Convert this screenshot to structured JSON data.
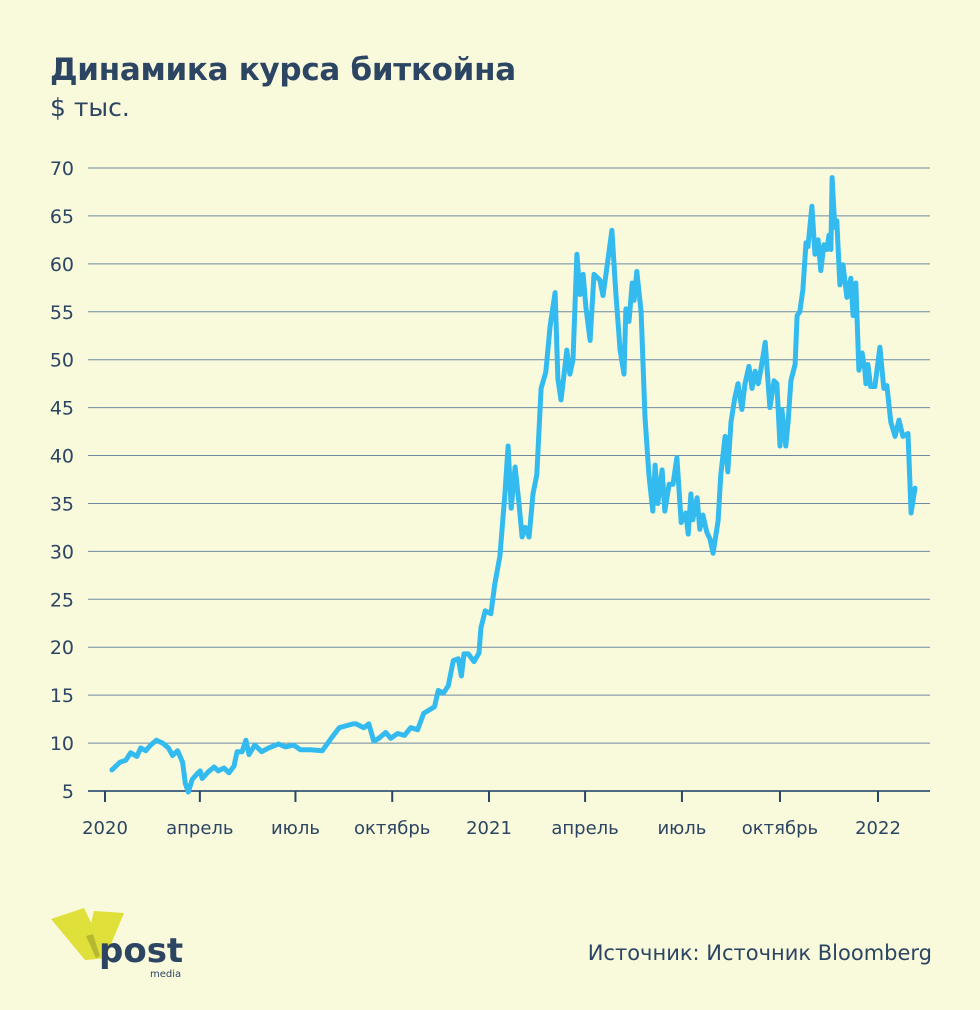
{
  "chart_data": {
    "type": "line",
    "title": "Динамика курса биткойна",
    "subtitle": "$ тыс.",
    "xlabel": "",
    "ylabel": "$ тыс.",
    "ylim": [
      5,
      70
    ],
    "yticks": [
      5,
      10,
      15,
      20,
      25,
      30,
      35,
      40,
      45,
      50,
      55,
      60,
      65,
      70
    ],
    "xticks": [
      {
        "x": 2020.0,
        "label": "2020"
      },
      {
        "x": 2020.247,
        "label": "апрель"
      },
      {
        "x": 2020.496,
        "label": "июль"
      },
      {
        "x": 2020.748,
        "label": "октябрь"
      },
      {
        "x": 2021.0,
        "label": "2021"
      },
      {
        "x": 2021.247,
        "label": "апрель"
      },
      {
        "x": 2021.496,
        "label": "июль"
      },
      {
        "x": 2021.748,
        "label": "октябрь"
      },
      {
        "x": 2022.0,
        "label": "2022"
      }
    ],
    "grid": true,
    "color": "#33bbef",
    "series": [
      {
        "name": "Bitcoin",
        "x": [
          2020.018,
          2020.039,
          2020.054,
          2020.067,
          2020.083,
          2020.093,
          2020.106,
          2020.119,
          2020.134,
          2020.15,
          2020.165,
          2020.176,
          2020.189,
          2020.202,
          2020.209,
          2020.217,
          2020.227,
          2020.24,
          2020.248,
          2020.253,
          2020.269,
          2020.284,
          2020.295,
          2020.31,
          2020.323,
          2020.336,
          2020.344,
          2020.357,
          2020.367,
          2020.375,
          2020.39,
          2020.408,
          2020.426,
          2020.452,
          2020.47,
          2020.491,
          2020.509,
          2020.535,
          2020.566,
          2020.589,
          2020.61,
          2020.646,
          2020.654,
          2020.674,
          2020.687,
          2020.7,
          2020.713,
          2020.731,
          2020.744,
          2020.762,
          2020.78,
          2020.796,
          2020.814,
          2020.83,
          2020.858,
          2020.868,
          2020.881,
          2020.894,
          2020.907,
          2020.92,
          2020.928,
          2020.935,
          2020.946,
          2020.961,
          2020.974,
          2020.979,
          2020.99,
          2021.005,
          2021.015,
          2021.028,
          2021.041,
          2021.049,
          2021.057,
          2021.067,
          2021.077,
          2021.085,
          2021.093,
          2021.103,
          2021.113,
          2021.123,
          2021.134,
          2021.146,
          2021.157,
          2021.17,
          2021.177,
          2021.185,
          2021.193,
          2021.2,
          2021.208,
          2021.216,
          2021.226,
          2021.234,
          2021.242,
          2021.249,
          2021.26,
          2021.27,
          2021.285,
          2021.293,
          2021.301,
          2021.316,
          2021.326,
          2021.337,
          2021.347,
          2021.352,
          2021.36,
          2021.368,
          2021.373,
          2021.38,
          2021.391,
          2021.401,
          2021.411,
          2021.421,
          2021.427,
          2021.434,
          2021.445,
          2021.452,
          2021.463,
          2021.473,
          2021.483,
          2021.494,
          2021.506,
          2021.512,
          2021.519,
          2021.524,
          2021.535,
          2021.542,
          2021.55,
          2021.56,
          2021.568,
          2021.576,
          2021.589,
          2021.596,
          2021.607,
          2021.614,
          2021.622,
          2021.632,
          2021.64,
          2021.65,
          2021.658,
          2021.668,
          2021.676,
          2021.684,
          2021.692,
          2021.699,
          2021.71,
          2021.722,
          2021.733,
          2021.74,
          2021.748,
          2021.753,
          2021.763,
          2021.769,
          2021.776,
          2021.787,
          2021.792,
          2021.799,
          2021.807,
          2021.815,
          2021.82,
          2021.83,
          2021.838,
          2021.846,
          2021.853,
          2021.861,
          2021.869,
          2021.874,
          2021.879,
          2021.882,
          2021.889,
          2021.894,
          2021.902,
          2021.91,
          2021.92,
          2021.93,
          2021.936,
          2021.943,
          2021.951,
          2021.959,
          2021.966,
          2021.969,
          2021.974,
          2021.981,
          2021.992,
          2022.005,
          2022.015,
          2022.023,
          2022.033,
          2022.044,
          2022.054,
          2022.064,
          2022.077,
          2022.085,
          2022.095
        ],
        "values": [
          7.2,
          8,
          8.2,
          9,
          8.6,
          9.5,
          9.2,
          9.8,
          10.3,
          10,
          9.5,
          8.7,
          9.2,
          8,
          5.8,
          4.9,
          6.2,
          6.8,
          7.1,
          6.3,
          7,
          7.5,
          7.1,
          7.4,
          6.9,
          7.6,
          9.1,
          9.1,
          10.3,
          8.8,
          9.8,
          9.1,
          9.5,
          9.9,
          9.6,
          9.8,
          9.3,
          9.3,
          9.2,
          10.5,
          11.6,
          12,
          12,
          11.6,
          12,
          10.2,
          10.5,
          11.1,
          10.5,
          11,
          10.8,
          11.6,
          11.4,
          13.1,
          13.8,
          15.5,
          15.2,
          16,
          18.6,
          18.8,
          17,
          19.3,
          19.3,
          18.5,
          19.4,
          22,
          23.8,
          23.5,
          26.6,
          29.5,
          36,
          41,
          34.5,
          38.8,
          35,
          31.5,
          32.5,
          31.5,
          36,
          38,
          47,
          48.7,
          53.5,
          57,
          48,
          45.8,
          48.5,
          51,
          48.5,
          50,
          61,
          56.8,
          58.9,
          55.5,
          52,
          58.9,
          58.3,
          56.7,
          59,
          63.5,
          57,
          51,
          48.5,
          55.3,
          54,
          58,
          56.2,
          59.2,
          55,
          44,
          38,
          34.2,
          39,
          35,
          38.5,
          34.2,
          37,
          37,
          39.8,
          33,
          34,
          31.8,
          36,
          33.3,
          35.6,
          32.3,
          33.8,
          32,
          31.3,
          29.8,
          33.2,
          38,
          42,
          38.3,
          43.5,
          46,
          47.5,
          44.8,
          47.5,
          49.3,
          47,
          48.8,
          47.5,
          49,
          51.8,
          45,
          47.8,
          47.5,
          41,
          44.8,
          41,
          43.5,
          47.8,
          49.5,
          54.6,
          55,
          57.3,
          62.2,
          61.8,
          66,
          61,
          62.5,
          59.3,
          62,
          61.5,
          63,
          61.5,
          69,
          63.8,
          64.5,
          57.8,
          59.9,
          56.5,
          58.5,
          54.6,
          58,
          48.9,
          50.7,
          49,
          47.5,
          49.5,
          47.2,
          47.2,
          51.3,
          47,
          47.3,
          43.5,
          42,
          43.7,
          42,
          42.3,
          34,
          36.6
        ]
      }
    ]
  },
  "source": "Источник: Источник Bloomberg",
  "logo": {
    "text": "post",
    "subtext": "media"
  }
}
